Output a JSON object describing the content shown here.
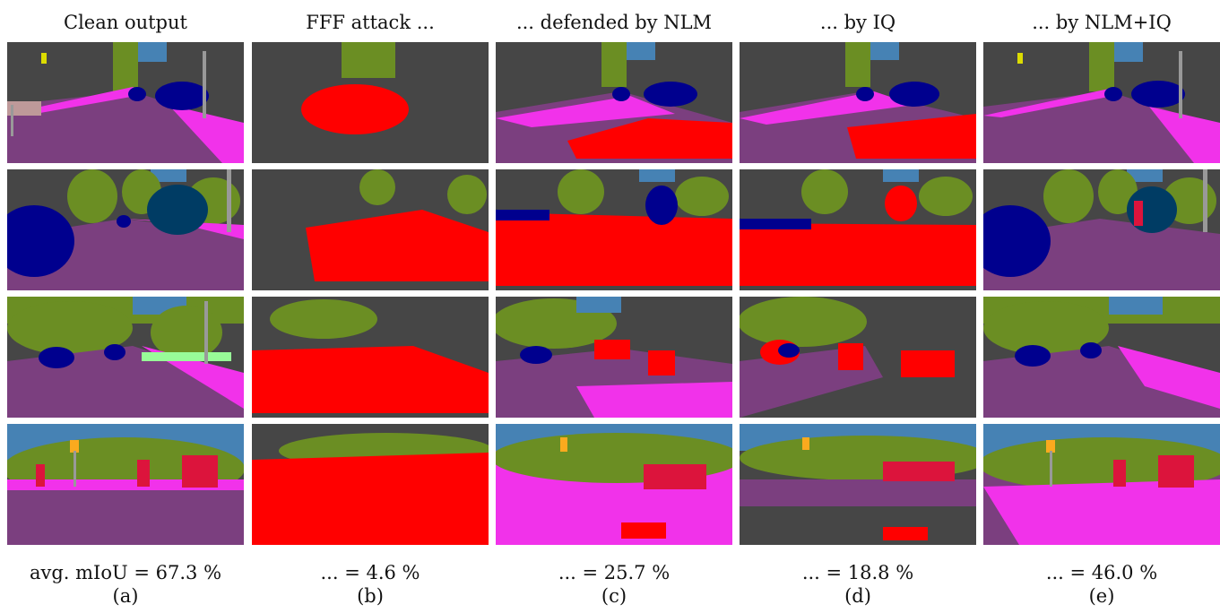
{
  "colors": {
    "road": "#7b3f7f",
    "sidewalk": "#f132ea",
    "building": "#464646",
    "vegetation": "#6b8e23",
    "sky": "#4682b4",
    "car": "#00008e",
    "truck": "#003c64",
    "person": "#dc143c",
    "attack_red": "#ff0000",
    "pole": "#999999",
    "terrain": "#98fb98",
    "traffic_sign": "#dcdc00",
    "traffic_light": "#faaa1e",
    "wall": "#be9999"
  },
  "columns": [
    {
      "id": "a",
      "title": "Clean output",
      "metric": "avg. mIoU = 67.3 %",
      "sublabel": "(a)"
    },
    {
      "id": "b",
      "title": "FFF attack ...",
      "metric": "... = 4.6 %",
      "sublabel": "(b)"
    },
    {
      "id": "c",
      "title": "... defended by NLM",
      "metric": "... = 25.7 %",
      "sublabel": "(c)"
    },
    {
      "id": "d",
      "title": "... by IQ",
      "metric": "... = 18.8 %",
      "sublabel": "(d)"
    },
    {
      "id": "e",
      "title": "... by NLM+IQ",
      "metric": "... = 46.0 %",
      "sublabel": "(e)"
    }
  ]
}
